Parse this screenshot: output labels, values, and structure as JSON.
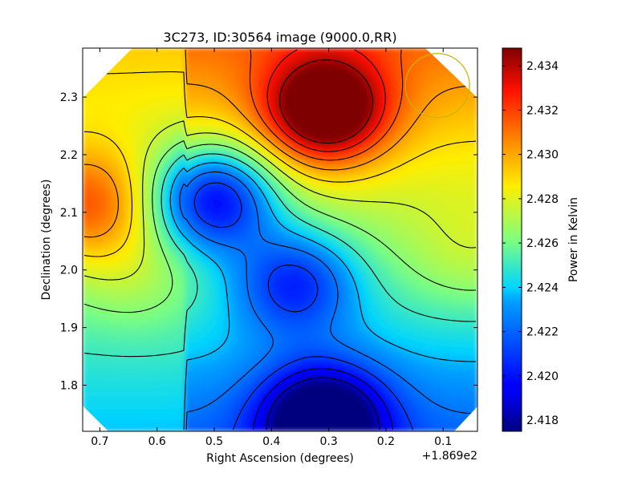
{
  "chart_data": {
    "type": "heatmap",
    "title": "3C273, ID:30564 image (9000.0,RR)",
    "xlabel": "Right Ascension (degrees)",
    "ylabel": "Declination (degrees)",
    "x_offset_label": "+1.869e2",
    "xlim": [
      0.73,
      0.04
    ],
    "ylim": [
      1.72,
      2.385
    ],
    "x_ticks": [
      0.7,
      0.6,
      0.5,
      0.4,
      0.3,
      0.2,
      0.1
    ],
    "x_tick_labels": [
      "0.7",
      "0.6",
      "0.5",
      "0.4",
      "0.3",
      "0.2",
      "0.1"
    ],
    "y_ticks": [
      1.8,
      1.9,
      2.0,
      2.1,
      2.2,
      2.3
    ],
    "y_tick_labels": [
      "1.8",
      "1.9",
      "2.0",
      "2.1",
      "2.2",
      "2.3"
    ],
    "colorbar": {
      "label": "Power in Kelvin",
      "range": [
        2.4175,
        2.4348
      ],
      "ticks": [
        2.418,
        2.42,
        2.422,
        2.424,
        2.426,
        2.428,
        2.43,
        2.432,
        2.434
      ],
      "tick_labels": [
        "2.418",
        "2.420",
        "2.422",
        "2.424",
        "2.426",
        "2.428",
        "2.430",
        "2.432",
        "2.434"
      ],
      "colormap": "jet"
    },
    "features": [
      {
        "x": 0.305,
        "y": 2.278,
        "value": 2.4345
      },
      {
        "x": 0.5,
        "y": 2.125,
        "value": 2.419
      },
      {
        "x": 0.72,
        "y": 2.11,
        "value": 2.431
      },
      {
        "x": 0.31,
        "y": 1.74,
        "value": 2.4178
      },
      {
        "x": 0.05,
        "y": 2.02,
        "value": 2.4278
      },
      {
        "x": 0.64,
        "y": 1.98,
        "value": 2.4275
      },
      {
        "x": 0.36,
        "y": 1.98,
        "value": 2.4215
      }
    ],
    "beam_circle": {
      "x": 0.11,
      "y": 2.32,
      "color": "#c8b400"
    },
    "colors": {
      "axes": "#000000",
      "contour": "#000000"
    }
  }
}
